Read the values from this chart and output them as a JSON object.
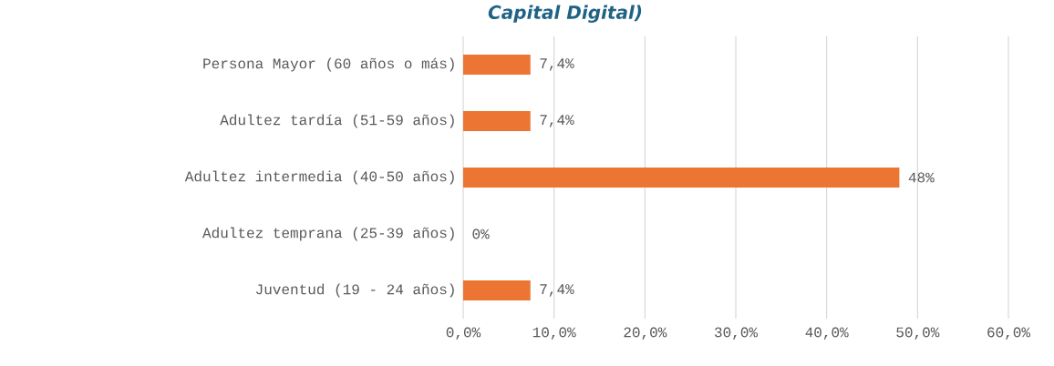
{
  "chart_data": {
    "type": "bar",
    "orientation": "horizontal",
    "title": "Capital Digital)",
    "categories": [
      "Persona Mayor (60 años o más)",
      "Adultez tardía (51-59 años)",
      "Adultez  intermedia (40-50 años)",
      "Adultez temprana (25-39 años)",
      "Juventud (19 - 24 años)"
    ],
    "values": [
      7.4,
      7.4,
      48,
      0,
      7.4
    ],
    "value_labels": [
      "7,4%",
      "7,4%",
      "48%",
      "0%",
      "7,4%"
    ],
    "color": "#ed7533",
    "xlim": [
      0,
      60
    ],
    "xticks": [
      {
        "value": 0,
        "label": "0,0%"
      },
      {
        "value": 10,
        "label": "10,0%"
      },
      {
        "value": 20,
        "label": "20,0%"
      },
      {
        "value": 30,
        "label": "30,0%"
      },
      {
        "value": 40,
        "label": "40,0%"
      },
      {
        "value": 50,
        "label": "50,0%"
      },
      {
        "value": 60,
        "label": "60,0%"
      }
    ],
    "grid": "x"
  }
}
